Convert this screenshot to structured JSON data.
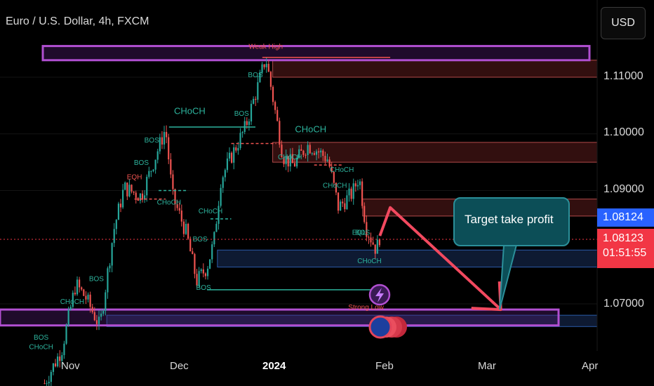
{
  "header": {
    "title": "Euro / U.S. Dollar, 4h, FXCM"
  },
  "currency_button": {
    "label": "USD"
  },
  "price_axis": {
    "labels": [
      "1.11000",
      "1.10000",
      "1.09000",
      "1.07000"
    ],
    "last_price_tag": "1.08124",
    "bid_price_tag": "1.08123",
    "countdown": "01:51:55"
  },
  "time_axis": {
    "labels": [
      "Nov",
      "Dec",
      "2024",
      "Feb",
      "Mar",
      "Apr"
    ]
  },
  "callout": {
    "text": "Target take profit"
  },
  "colors": {
    "bull": "#26a69a",
    "bear": "#ef5350",
    "purple": "#b14fd1",
    "zone_red": "#8e2a2a",
    "zone_blue": "#1e3a6e",
    "structure": "#2db39d",
    "arrow": "#f2495f",
    "last_price": "#2962ff",
    "bid_price": "#f23645"
  },
  "icons": {
    "flash": "lightning-icon",
    "flag": "eu-flag-icon"
  },
  "chart_data": {
    "type": "candlestick",
    "symbol": "Euro / U.S. Dollar",
    "interval": "4h",
    "source": "FXCM",
    "x_ticks": [
      "Nov",
      "Dec",
      "2024",
      "Feb",
      "Mar",
      "Apr"
    ],
    "y_ticks": [
      1.11,
      1.1,
      1.09,
      1.07
    ],
    "ylim": [
      1.0615,
      1.1175
    ],
    "last_price": 1.08124,
    "bid_price": 1.08123,
    "price_path": [
      [
        "Oct 25",
        1.056
      ],
      [
        "Oct 30",
        1.062
      ],
      [
        "Nov 3",
        1.0735
      ],
      [
        "Nov 6",
        1.071
      ],
      [
        "Nov 10",
        1.066
      ],
      [
        "Nov 14",
        1.083
      ],
      [
        "Nov 17",
        1.0905
      ],
      [
        "Nov 22",
        1.089
      ],
      [
        "Nov 29",
        1.101
      ],
      [
        "Dec 1",
        1.089
      ],
      [
        "Dec 5",
        1.0825
      ],
      [
        "Dec 8",
        1.074
      ],
      [
        "Dec 11",
        1.0765
      ],
      [
        "Dec 13",
        1.081
      ],
      [
        "Dec 15",
        1.092
      ],
      [
        "Dec 18",
        1.096
      ],
      [
        "Dec 22",
        1.101
      ],
      [
        "Dec 26",
        1.109
      ],
      [
        "Dec 28",
        1.1135
      ],
      [
        "Jan 2",
        1.096
      ],
      [
        "Jan 5",
        1.0945
      ],
      [
        "Jan 9",
        1.098
      ],
      [
        "Jan 11",
        1.0975
      ],
      [
        "Jan 15",
        1.0955
      ],
      [
        "Jan 18",
        1.087
      ],
      [
        "Jan 22",
        1.0895
      ],
      [
        "Jan 24",
        1.0925
      ],
      [
        "Jan 26",
        1.0835
      ],
      [
        "Jan 29",
        1.0795
      ],
      [
        "Jan 30",
        1.082
      ]
    ],
    "zones": [
      {
        "kind": "resistance",
        "top": 1.113,
        "bottom": 1.11
      },
      {
        "kind": "resistance",
        "top": 1.0985,
        "bottom": 1.095
      },
      {
        "kind": "resistance",
        "top": 1.0885,
        "bottom": 1.0855
      },
      {
        "kind": "support",
        "top": 1.0795,
        "bottom": 1.0765
      },
      {
        "kind": "support",
        "top": 1.068,
        "bottom": 1.066
      },
      {
        "kind": "purple_box",
        "top": 1.1155,
        "bottom": 1.113
      },
      {
        "kind": "purple_box",
        "top": 1.069,
        "bottom": 1.0662
      }
    ],
    "labels": [
      {
        "text": "Weak High",
        "date": "Dec 28",
        "price": 1.115
      },
      {
        "text": "Strong Low",
        "date": "Jan 26",
        "price": 1.069
      },
      {
        "text": "CHoCH",
        "date": "Dec 6",
        "price": 1.1035
      },
      {
        "text": "CHoCH",
        "date": "Jan 10",
        "price": 1.1003
      },
      {
        "text": "CHoCH",
        "date": "Jan 19",
        "price": 1.0933
      },
      {
        "text": "CHoCH",
        "date": "Jan 27",
        "price": 1.0772
      },
      {
        "text": "CHoCH",
        "date": "Nov 30",
        "price": 1.0875
      },
      {
        "text": "CHoCH",
        "date": "Dec 12",
        "price": 1.086
      },
      {
        "text": "CHoCH",
        "date": "Jan 4",
        "price": 1.0955
      },
      {
        "text": "CHoCH",
        "date": "Jan 17",
        "price": 1.0905
      },
      {
        "text": "CHoCH",
        "date": "Nov 2",
        "price": 1.07
      },
      {
        "text": "CHoCH",
        "date": "Oct 24",
        "price": 1.062
      },
      {
        "text": "BOS",
        "date": "Nov 9",
        "price": 1.074
      },
      {
        "text": "BOS",
        "date": "Nov 22",
        "price": 1.0945
      },
      {
        "text": "BOS",
        "date": "Nov 25",
        "price": 1.0985
      },
      {
        "text": "BOS",
        "date": "Dec 9",
        "price": 1.081
      },
      {
        "text": "BOS",
        "date": "Dec 10",
        "price": 1.0725
      },
      {
        "text": "BOS",
        "date": "Dec 21",
        "price": 1.1032
      },
      {
        "text": "BOS",
        "date": "Dec 25",
        "price": 1.11
      },
      {
        "text": "BOS",
        "date": "Jan 25",
        "price": 1.0822
      },
      {
        "text": "BOS",
        "date": "Oct 24",
        "price": 1.0637
      },
      {
        "text": "EQH",
        "date": "Nov 20",
        "price": 1.092
      },
      {
        "text": "EQL",
        "date": "Jan 24",
        "price": 1.0822
      }
    ],
    "projection": [
      [
        "Jan 30",
        1.082
      ],
      [
        "Feb 2",
        1.087
      ],
      [
        "Mar 5",
        1.069
      ]
    ]
  }
}
